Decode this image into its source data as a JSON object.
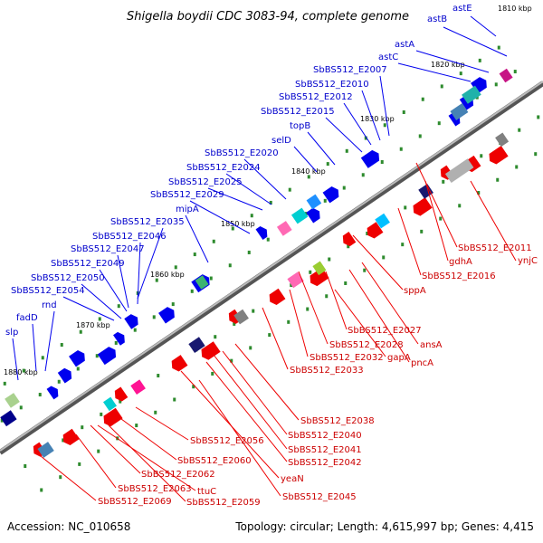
{
  "title": "Shigella boydii CDC 3083-94, complete genome",
  "accession": "Accession: NC_010658",
  "topology": "Topology: circular; Length: 4,615,997 bp; Genes: 4,415",
  "ticks": [
    "1810 kbp",
    "1820 kbp",
    "1830 kbp",
    "1840 kbp",
    "1850 kbp",
    "1860 kbp",
    "1870 kbp",
    "1880 kbp"
  ],
  "labels_top": [
    "astE",
    "astB",
    "astA",
    "astC",
    "SbBS512_E2007",
    "SbBS512_E2010",
    "SbBS512_E2012",
    "SbBS512_E2015",
    "topB",
    "selD",
    "SbBS512_E2020",
    "SbBS512_E2024",
    "SbBS512_E2025",
    "SbBS512_E2029",
    "mipA",
    "SbBS512_E2035",
    "SbBS512_E2046",
    "SbBS512_E2047",
    "SbBS512_E2049",
    "SbBS512_E2050",
    "SbBS512_E2054",
    "fadD",
    "rnd",
    "slp"
  ],
  "labels_bottom": [
    "SbBS512_E2011",
    "ynjC",
    "gdhA",
    "SbBS512_E2016",
    "sppA",
    "SbBS512_E2027",
    "ansA",
    "SbBS512_E2028",
    "pncA",
    "SbBS512_E2032",
    "gapA",
    "SbBS512_E2033",
    "SbBS512_E2038",
    "SbBS512_E2040",
    "SbBS512_E2041",
    "SbBS512_E2042",
    "SbBS512_E2056",
    "SbBS512_E2045",
    "yeaN",
    "SbBS512_E2060",
    "SbBS512_E2059",
    "SbBS512_E2062",
    "SbBS512_E2063",
    "ttuC",
    "SbBS512_E2069"
  ],
  "colors": {
    "top_strand": "#0000ee",
    "bottom_strand": "#ee0000",
    "backbone": "#808080",
    "tick_dot": "#2e8b2e"
  }
}
